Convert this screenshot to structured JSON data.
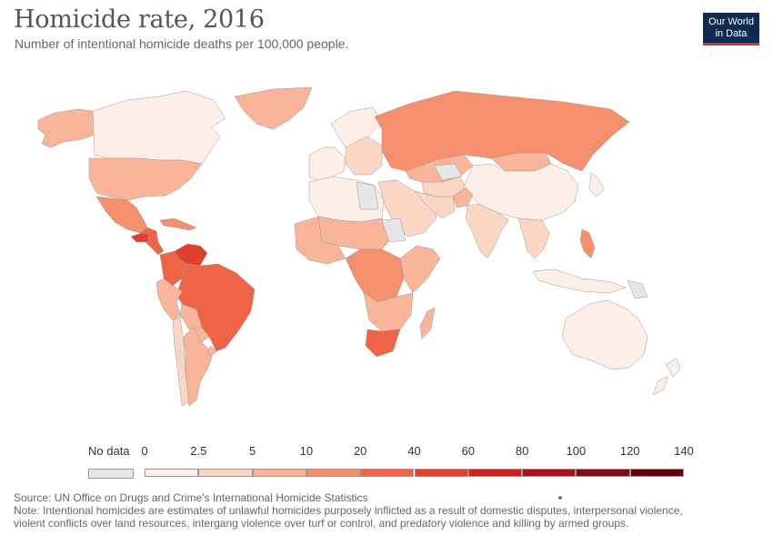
{
  "header": {
    "title": "Homicide rate, 2016",
    "subtitle": "Number of intentional homicide deaths per 100,000 people."
  },
  "logo": {
    "line1": "Our World",
    "line2": "in Data"
  },
  "legend": {
    "no_data_label": "No data",
    "no_data_color": "#e6e6e6",
    "ticks": [
      "0",
      "2.5",
      "5",
      "10",
      "20",
      "40",
      "60",
      "80",
      "100",
      "120",
      "140"
    ],
    "bins": [
      {
        "from": 0,
        "to": 2.5,
        "color": "#fdefe8"
      },
      {
        "from": 2.5,
        "to": 5,
        "color": "#fbd6c5"
      },
      {
        "from": 5,
        "to": 10,
        "color": "#f8b59a"
      },
      {
        "from": 10,
        "to": 20,
        "color": "#f4906e"
      },
      {
        "from": 20,
        "to": 40,
        "color": "#ef6447"
      },
      {
        "from": 40,
        "to": 60,
        "color": "#e2402f"
      },
      {
        "from": 60,
        "to": 80,
        "color": "#c82225"
      },
      {
        "from": 80,
        "to": 100,
        "color": "#a5141e"
      },
      {
        "from": 100,
        "to": 120,
        "color": "#800c17"
      },
      {
        "from": 120,
        "to": 140,
        "color": "#5e0410"
      }
    ]
  },
  "map": {
    "regions": [
      {
        "name": "Canada",
        "rate": 1.7
      },
      {
        "name": "Alaska",
        "rate": 7
      },
      {
        "name": "Greenland",
        "rate": 7
      },
      {
        "name": "United States",
        "rate": 5.4
      },
      {
        "name": "Mexico",
        "rate": 19
      },
      {
        "name": "Honduras",
        "rate": 56
      },
      {
        "name": "Central America",
        "rate": 25
      },
      {
        "name": "Caribbean",
        "rate": 12
      },
      {
        "name": "Venezuela",
        "rate": 57
      },
      {
        "name": "Colombia",
        "rate": 25
      },
      {
        "name": "Brazil",
        "rate": 29
      },
      {
        "name": "Peru",
        "rate": 7.7
      },
      {
        "name": "Bolivia",
        "rate": 6.3
      },
      {
        "name": "Paraguay",
        "rate": 9.8
      },
      {
        "name": "Uruguay",
        "rate": 7.8
      },
      {
        "name": "Chile",
        "rate": 3.6
      },
      {
        "name": "Argentina",
        "rate": 6
      },
      {
        "name": "Western Europe",
        "rate": 1
      },
      {
        "name": "Scandinavia",
        "rate": 1
      },
      {
        "name": "Eastern Europe",
        "rate": 4
      },
      {
        "name": "Russia",
        "rate": 10.8
      },
      {
        "name": "Kazakhstan",
        "rate": 5
      },
      {
        "name": "Middle East",
        "rate": 3.5
      },
      {
        "name": "Iran",
        "rate": 2.5
      },
      {
        "name": "Afghanistan",
        "rate": 6.7
      },
      {
        "name": "India",
        "rate": 3.2
      },
      {
        "name": "China",
        "rate": 0.6
      },
      {
        "name": "Mongolia",
        "rate": 6.2
      },
      {
        "name": "Japan",
        "rate": 0.3
      },
      {
        "name": "Southeast Asia",
        "rate": 3
      },
      {
        "name": "Philippines",
        "rate": 11
      },
      {
        "name": "Indonesia",
        "rate": 0.5
      },
      {
        "name": "Australia",
        "rate": 1
      },
      {
        "name": "New Zealand",
        "rate": 1
      },
      {
        "name": "North Africa",
        "rate": 2
      },
      {
        "name": "Sahel",
        "rate": 5
      },
      {
        "name": "West Africa",
        "rate": 9
      },
      {
        "name": "Central Africa",
        "rate": 13
      },
      {
        "name": "East Africa",
        "rate": 7
      },
      {
        "name": "Southern Africa",
        "rate": 7
      },
      {
        "name": "South Africa",
        "rate": 34
      },
      {
        "name": "Madagascar",
        "rate": 7.5
      },
      {
        "name": "Central Asia",
        "rate": 3
      }
    ],
    "no_data_regions": [
      "Libya",
      "Sudan",
      "Turkmenistan",
      "Papua New Guinea"
    ]
  },
  "footer": {
    "source": "Source: UN Office on Drugs and Crime's International Homicide Statistics",
    "note_line1": "Note: Intentional homicides are estimates of unlawful homicides purposely inflicted as a result of domestic disputes, interpersonal violence,",
    "note_line2": "violent conflicts over land resources, intergang violence over turf or control, and predatory violence and killing by armed groups."
  }
}
